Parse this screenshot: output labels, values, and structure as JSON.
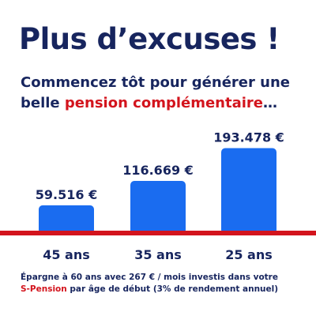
{
  "title": "Plus d’excuses !",
  "subtitle": {
    "part1": "Commencez tôt pour générer une belle ",
    "accent": "pension complémentaire",
    "part2": "…"
  },
  "footnote": {
    "part1": "Épargne à 60 ans avec 267 € / mois investis dans votre",
    "accent": "S-Pension",
    "part2": " par âge de début (3% de rendement annuel)"
  },
  "colors": {
    "bar": "#1a6cf0",
    "baseline": "#d3141d",
    "text": "#17255e"
  },
  "chart_data": {
    "type": "bar",
    "categories": [
      "45 ans",
      "35 ans",
      "25 ans"
    ],
    "values": [
      59516,
      116669,
      193478
    ],
    "value_labels": [
      "59.516 €",
      "116.669 €",
      "193.478 €"
    ],
    "ylim": [
      0,
      200000
    ],
    "grid": false,
    "legend": "none"
  }
}
